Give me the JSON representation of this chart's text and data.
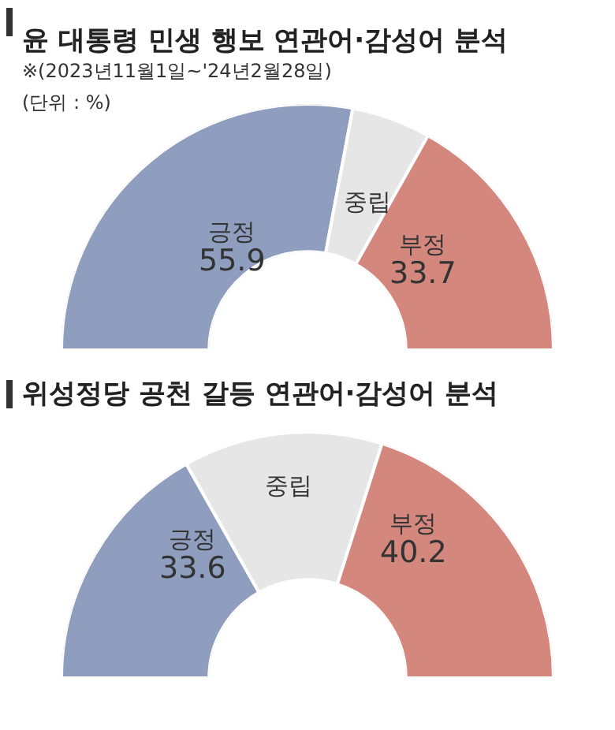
{
  "chart_data": [
    {
      "type": "donut",
      "title": "윤 대통령 민생 행보 연관어·감성어 분석",
      "subtitle": "※(2023년11월1일~'24년2월28일)",
      "annotations": [
        "(단위 : %)"
      ],
      "categories": [
        "긍정",
        "중립",
        "부정"
      ],
      "values": [
        55.9,
        10.4,
        33.7
      ],
      "value_labels": [
        "55.9",
        null,
        "33.7"
      ],
      "colors": [
        "#8f9dbf",
        "#e6e6e6",
        "#d3877d"
      ]
    },
    {
      "type": "donut",
      "title": "위성정당 공천 갈등 연관어·감성어 분석",
      "categories": [
        "긍정",
        "중립",
        "부정"
      ],
      "values": [
        33.6,
        26.2,
        40.2
      ],
      "value_labels": [
        "33.6",
        null,
        "40.2"
      ],
      "colors": [
        "#8f9dbf",
        "#e6e6e6",
        "#d3877d"
      ]
    }
  ]
}
